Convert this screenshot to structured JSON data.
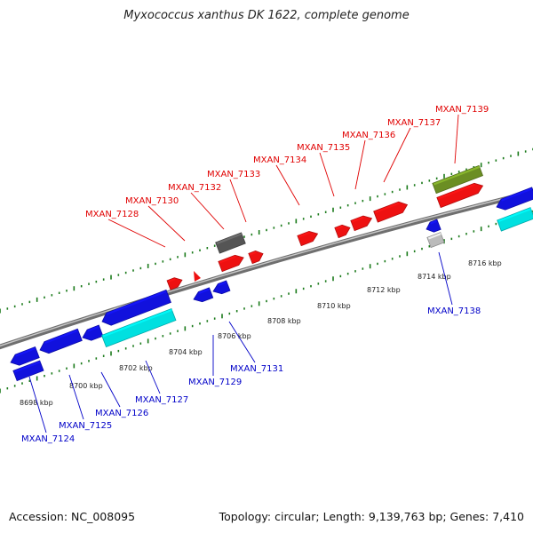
{
  "title": "Myxococcus xanthus DK 1622, complete genome",
  "footer": {
    "accession": "Accession: NC_008095",
    "summary": "Topology: circular; Length: 9,139,763 bp; Genes: 7,410"
  },
  "colors": {
    "forward_gene": "#ee1111",
    "reverse_gene": "#1111dd",
    "rna": "#00e0e0",
    "pseudo": "#555555",
    "other": "#6b8e23",
    "backbone": "#888888",
    "ticks": "#1a7a1a"
  },
  "scale_labels": [
    "8698 kbp",
    "8700 kbp",
    "8702 kbp",
    "8704 kbp",
    "8706 kbp",
    "8708 kbp",
    "8710 kbp",
    "8712 kbp",
    "8714 kbp",
    "8716 kbp"
  ],
  "top_labels": [
    "MXAN_7128",
    "MXAN_7130",
    "MXAN_7132",
    "MXAN_7133",
    "MXAN_7134",
    "MXAN_7135",
    "MXAN_7136",
    "MXAN_7137",
    "MXAN_7139"
  ],
  "bottom_labels": [
    "MXAN_7124",
    "MXAN_7125",
    "MXAN_7126",
    "MXAN_7127",
    "MXAN_7129",
    "MXAN_7131",
    "MXAN_7138"
  ]
}
